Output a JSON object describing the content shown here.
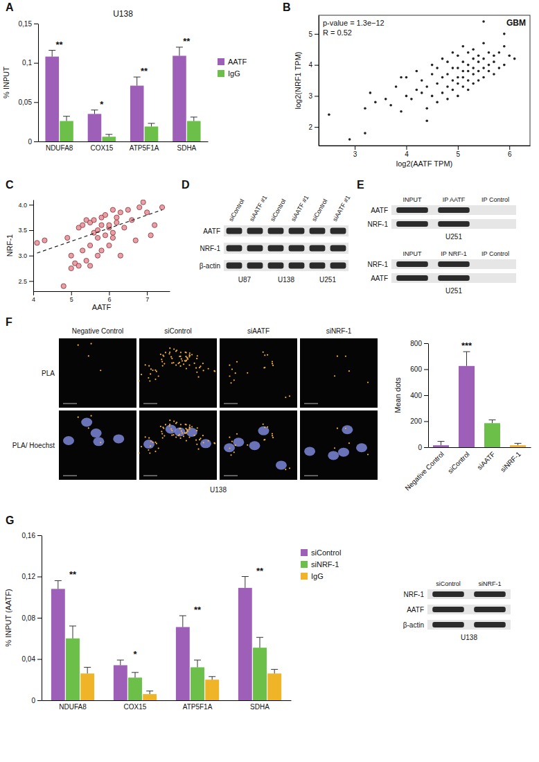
{
  "chart_data": [
    {
      "panel": "A",
      "type": "bar",
      "title": "U138",
      "y_label": "% INPUT",
      "categories": [
        "NDUFA8",
        "COX15",
        "ATP5F1A",
        "SDHA"
      ],
      "series": [
        {
          "name": "AATF",
          "color": "#9e5fb8",
          "values": [
            0.108,
            0.035,
            0.071,
            0.109
          ],
          "errors": [
            0.008,
            0.005,
            0.011,
            0.011
          ]
        },
        {
          "name": "IgG",
          "color": "#6cc04a",
          "values": [
            0.026,
            0.006,
            0.019,
            0.026
          ],
          "errors": [
            0.006,
            0.003,
            0.004,
            0.005
          ]
        }
      ],
      "ylim": [
        0,
        0.15
      ],
      "yticks": [
        0,
        {
          "value": 0.05,
          "label": "0,05"
        },
        {
          "value": 0.1,
          "label": "0,1"
        },
        {
          "value": 0.15,
          "label": "0,15"
        }
      ],
      "significance": [
        "**",
        "*",
        "**",
        "**"
      ],
      "legend": "right"
    },
    {
      "panel": "B",
      "type": "scatter",
      "title": "GBM",
      "annotations": [
        "p-value = 1.3e−12",
        "R = 0.52"
      ],
      "x_label": "log2(AATF TPM)",
      "y_label": "log2(NRF1 TPM)",
      "x": [
        2.5,
        2.9,
        3.2,
        3.2,
        3.3,
        3.4,
        3.6,
        3.7,
        3.8,
        3.9,
        4.0,
        4.0,
        4.1,
        4.2,
        4.2,
        4.3,
        4.3,
        4.4,
        4.4,
        4.5,
        4.5,
        4.5,
        4.6,
        4.6,
        4.6,
        4.7,
        4.7,
        4.7,
        4.8,
        4.8,
        4.8,
        4.8,
        4.9,
        4.9,
        4.9,
        4.9,
        5.0,
        5.0,
        5.0,
        5.0,
        5.0,
        5.1,
        5.1,
        5.1,
        5.1,
        5.1,
        5.2,
        5.2,
        5.2,
        5.2,
        5.2,
        5.3,
        5.3,
        5.3,
        5.3,
        5.3,
        5.4,
        5.4,
        5.4,
        5.4,
        5.5,
        5.5,
        5.5,
        5.5,
        5.6,
        5.6,
        5.6,
        5.7,
        5.7,
        5.7,
        5.8,
        5.8,
        5.9,
        5.9,
        6.0,
        6.1,
        5.5,
        5.9,
        4.4,
        3.9
      ],
      "values": [
        2.4,
        1.6,
        1.8,
        2.6,
        3.1,
        2.8,
        2.9,
        2.7,
        3.3,
        2.5,
        3.0,
        3.6,
        2.9,
        3.2,
        3.8,
        3.1,
        3.5,
        2.6,
        3.3,
        3.0,
        3.7,
        4.0,
        2.8,
        3.4,
        3.9,
        3.1,
        3.6,
        4.2,
        2.9,
        3.3,
        3.7,
        4.1,
        3.2,
        3.5,
        3.9,
        4.4,
        3.0,
        3.4,
        3.6,
        3.9,
        4.3,
        3.3,
        3.6,
        3.8,
        4.1,
        4.6,
        3.2,
        3.5,
        3.8,
        4.0,
        4.4,
        3.4,
        3.7,
        3.9,
        4.2,
        4.5,
        3.5,
        3.8,
        4.1,
        4.3,
        3.6,
        3.9,
        4.2,
        4.7,
        3.8,
        4.0,
        4.4,
        3.7,
        4.1,
        4.3,
        3.9,
        4.4,
        4.0,
        4.6,
        4.3,
        4.2,
        5.4,
        5.0,
        2.2,
        3.6
      ],
      "color": "#222222",
      "marker": "circle",
      "xlim": [
        2.3,
        6.4
      ],
      "ylim": [
        1.4,
        5.6
      ],
      "xticks": [
        3,
        4,
        5,
        6
      ],
      "yticks": [
        2,
        3,
        4,
        5
      ]
    },
    {
      "panel": "C",
      "type": "scatter",
      "x_label": "AATF",
      "y_label": "NRF-1",
      "x": [
        4.1,
        4.3,
        4.8,
        4.9,
        5.0,
        5.1,
        5.2,
        5.3,
        5.3,
        5.4,
        5.4,
        5.5,
        5.5,
        5.5,
        5.6,
        5.6,
        5.7,
        5.7,
        5.7,
        5.8,
        5.8,
        5.8,
        5.9,
        5.9,
        6.0,
        6.0,
        6.0,
        6.1,
        6.1,
        6.1,
        6.2,
        6.2,
        6.3,
        6.3,
        6.4,
        6.5,
        6.6,
        6.7,
        6.8,
        7.0,
        7.1,
        7.2,
        7.4,
        5.2,
        5.0,
        6.9
      ],
      "values": [
        3.25,
        3.3,
        2.4,
        3.35,
        3.0,
        2.85,
        3.55,
        3.1,
        3.6,
        2.9,
        3.7,
        3.65,
        3.2,
        2.8,
        3.45,
        3.7,
        3.0,
        3.5,
        3.35,
        3.75,
        3.6,
        3.1,
        3.4,
        3.8,
        3.55,
        3.6,
        3.2,
        3.9,
        3.45,
        3.35,
        3.65,
        3.75,
        3.0,
        3.85,
        3.55,
        3.9,
        3.7,
        3.3,
        3.95,
        3.85,
        3.4,
        3.6,
        3.95,
        2.8,
        2.75,
        4.05
      ],
      "color": "#e8a0a8",
      "marker": "circle",
      "trend": {
        "x": [
          4.1,
          7.4
        ],
        "values": [
          3.05,
          3.9
        ],
        "line_style": "dashed"
      },
      "xlim": [
        4,
        7.6
      ],
      "ylim": [
        2.3,
        4.1
      ],
      "xticks": [
        4,
        5,
        6,
        7
      ],
      "yticks": [
        2.5,
        {
          "value": 3,
          "label": "3.0"
        },
        3.5,
        {
          "value": 4,
          "label": "4.0"
        }
      ]
    },
    {
      "type": "bar",
      "y_label": "Mean dots",
      "categories": [
        "Negative Control",
        "siControl",
        "siAATF",
        "siNRF-1"
      ],
      "values": [
        15,
        625,
        185,
        15
      ],
      "errors": [
        30,
        110,
        25,
        15
      ],
      "colors": [
        "#9e5fb8",
        "#9e5fb8",
        "#6cc04a",
        "#f0b429"
      ],
      "ylim": [
        0,
        800
      ],
      "yticks": [
        0,
        200,
        400,
        600,
        800
      ],
      "significance": [
        null,
        "***",
        null,
        null
      ]
    },
    {
      "panel": "G",
      "type": "bar",
      "y_label": "% INPUT (AATF)",
      "categories": [
        "NDUFA8",
        "COX15",
        "ATP5F1A",
        "SDHA"
      ],
      "series": [
        {
          "name": "siControl",
          "color": "#9e5fb8",
          "values": [
            0.108,
            0.034,
            0.071,
            0.109
          ],
          "errors": [
            0.008,
            0.005,
            0.011,
            0.011
          ]
        },
        {
          "name": "siNRF-1",
          "color": "#6cc04a",
          "values": [
            0.06,
            0.022,
            0.032,
            0.051
          ],
          "errors": [
            0.012,
            0.005,
            0.007,
            0.01
          ]
        },
        {
          "name": "IgG",
          "color": "#f0b429",
          "values": [
            0.026,
            0.006,
            0.02,
            0.026
          ],
          "errors": [
            0.006,
            0.003,
            0.003,
            0.004
          ]
        }
      ],
      "ylim": [
        0,
        0.16
      ],
      "yticks": [
        0,
        {
          "value": 0.04,
          "label": "0,04"
        },
        {
          "value": 0.08,
          "label": "0,08"
        },
        {
          "value": 0.12,
          "label": "0,12"
        },
        {
          "value": 0.16,
          "label": "0,16"
        }
      ],
      "significance": [
        "**",
        "*",
        "**",
        "**"
      ],
      "legend": "right"
    }
  ],
  "blots": [
    {
      "panel": "D",
      "rows": [
        "AATF",
        "NRF-1",
        "β-actin"
      ],
      "groups": [
        {
          "label": "U87",
          "lanes": [
            "siControl",
            "siAATF #1"
          ]
        },
        {
          "label": "U138",
          "lanes": [
            "siControl",
            "siAATF #1"
          ]
        },
        {
          "label": "U251",
          "lanes": [
            "siControl",
            "siAATF #1"
          ]
        }
      ]
    },
    {
      "panel": "E",
      "rows": [
        "AATF",
        "NRF-1"
      ],
      "lanes": [
        "INPUT",
        "IP AATF",
        "IP Control"
      ],
      "cell": "U251",
      "bands": [
        [
          true,
          true,
          false
        ],
        [
          true,
          true,
          false
        ]
      ]
    },
    {
      "rows": [
        "NRF-1",
        "AATF"
      ],
      "lanes": [
        "INPUT",
        "IP NRF-1",
        "IP Control"
      ],
      "cell": "U251",
      "bands": [
        [
          true,
          true,
          false
        ],
        [
          true,
          true,
          false
        ]
      ]
    },
    {
      "rows": [
        "NRF-1",
        "AATF",
        "β-actin"
      ],
      "lanes": [
        "siControl",
        "siNRF-1"
      ],
      "cell": "U138"
    }
  ],
  "images": {
    "panel": "F",
    "columns": [
      "Negative Control",
      "siControl",
      "siAATF",
      "siNRF-1"
    ],
    "rows": [
      "PLA",
      "PLA/ Hoechst"
    ],
    "caption": "U138"
  }
}
